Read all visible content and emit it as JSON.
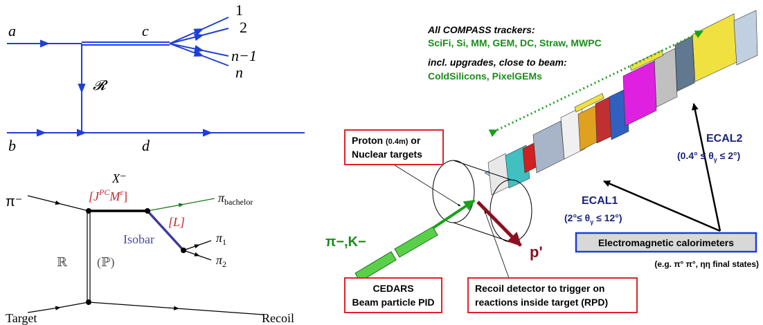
{
  "feynman_top": {
    "a": "a",
    "b": "b",
    "c": "c",
    "d": "d",
    "exchange": "𝓡",
    "outgoing": [
      "1",
      "2",
      "n−1",
      "n"
    ]
  },
  "feynman_bottom": {
    "beam": "π⁻",
    "resonance": "X⁻",
    "quantum_numbers": {
      "open": "[J",
      "sup1": "PC",
      "mid": "M",
      "sup2": "ε",
      "close": "]"
    },
    "bachelor": {
      "base": "π",
      "sub": "bachelor"
    },
    "angular": "[L]",
    "isobar": "Isobar",
    "pi1": {
      "base": "π",
      "sub": "1"
    },
    "pi2": {
      "base": "π",
      "sub": "2"
    },
    "reggeon": "ℝ",
    "pomeron": "(ℙ)",
    "target": "Target",
    "recoil": "Recoil"
  },
  "detector": {
    "trackers_heading": "All COMPASS trackers:",
    "trackers": "SciFi, Si, MM, GEM, DC, Straw, MWPC",
    "upgrades_heading": "incl. upgrades, close to beam:",
    "upgrades": "ColdSilicons, PixelGEMs",
    "target_box": {
      "line1_a": "Proton ",
      "line1_small": "(0.4m)",
      "line1_b": " or",
      "line2": "Nuclear targets"
    },
    "ecal2": {
      "name": "ECAL2",
      "range_a": "(0.4° ",
      "range_b": "≤ θ",
      "range_sub": "γ",
      "range_c": " ≤ 2°)"
    },
    "ecal1": {
      "name": "ECAL1",
      "range_a": "(2°≤ θ",
      "range_sub": "γ",
      "range_c": " ≤ 12°)"
    },
    "calorimeters": "Electromagnetic calorimeters",
    "final_states": "(e.g. π° π°, ηη final states)",
    "beam_label": "π−,K−",
    "recoil_proton": "p'",
    "cedars_box": {
      "line1": "CEDARS",
      "line2": "Beam particle PID"
    },
    "rpd_box": {
      "line1": "Recoil detector to trigger on",
      "line2": "reactions inside target (RPD)"
    }
  }
}
